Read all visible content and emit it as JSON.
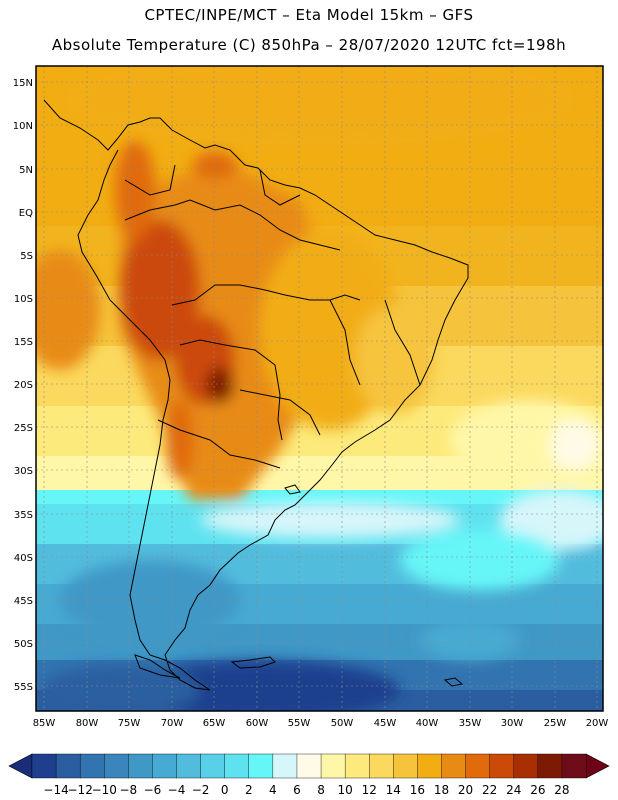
{
  "header": {
    "line1": "CPTEC/INPE/MCT –  Eta Model 15km – GFS",
    "line2": "Absolute Temperature (C) 850hPa – 28/07/2020 12UTC fct=198h"
  },
  "axes": {
    "lat_labels": [
      "15N",
      "10N",
      "5N",
      "EQ",
      "5S",
      "10S",
      "15S",
      "20S",
      "25S",
      "30S",
      "35S",
      "40S",
      "45S",
      "50S",
      "55S"
    ],
    "lon_labels": [
      "85W",
      "80W",
      "75W",
      "70W",
      "65W",
      "60W",
      "55W",
      "50W",
      "45W",
      "40W",
      "35W",
      "30W",
      "25W",
      "20W"
    ]
  },
  "colorbar": {
    "labels": [
      "-14",
      "-12",
      "-10",
      "-8",
      "-6",
      "-4",
      "-2",
      "0",
      "2",
      "4",
      "6",
      "8",
      "10",
      "12",
      "14",
      "16",
      "18",
      "20",
      "22",
      "24",
      "26",
      "28"
    ],
    "colors": [
      "#1f3f8e",
      "#2a5ea0",
      "#3274b0",
      "#3a86bc",
      "#3f98c6",
      "#47aad2",
      "#52bcdd",
      "#58d0e8",
      "#5ee2f0",
      "#66f6f8",
      "#d6f6fa",
      "#fffbe6",
      "#fff7a8",
      "#fdea7c",
      "#fbd95e",
      "#f6c43c",
      "#f2ad12",
      "#e88b14",
      "#e06a0c",
      "#cc4a08",
      "#a82e04",
      "#7c1a04",
      "#6e0c1a"
    ],
    "min_color": "#1a2d7a",
    "max_color": "#6e0018"
  }
}
